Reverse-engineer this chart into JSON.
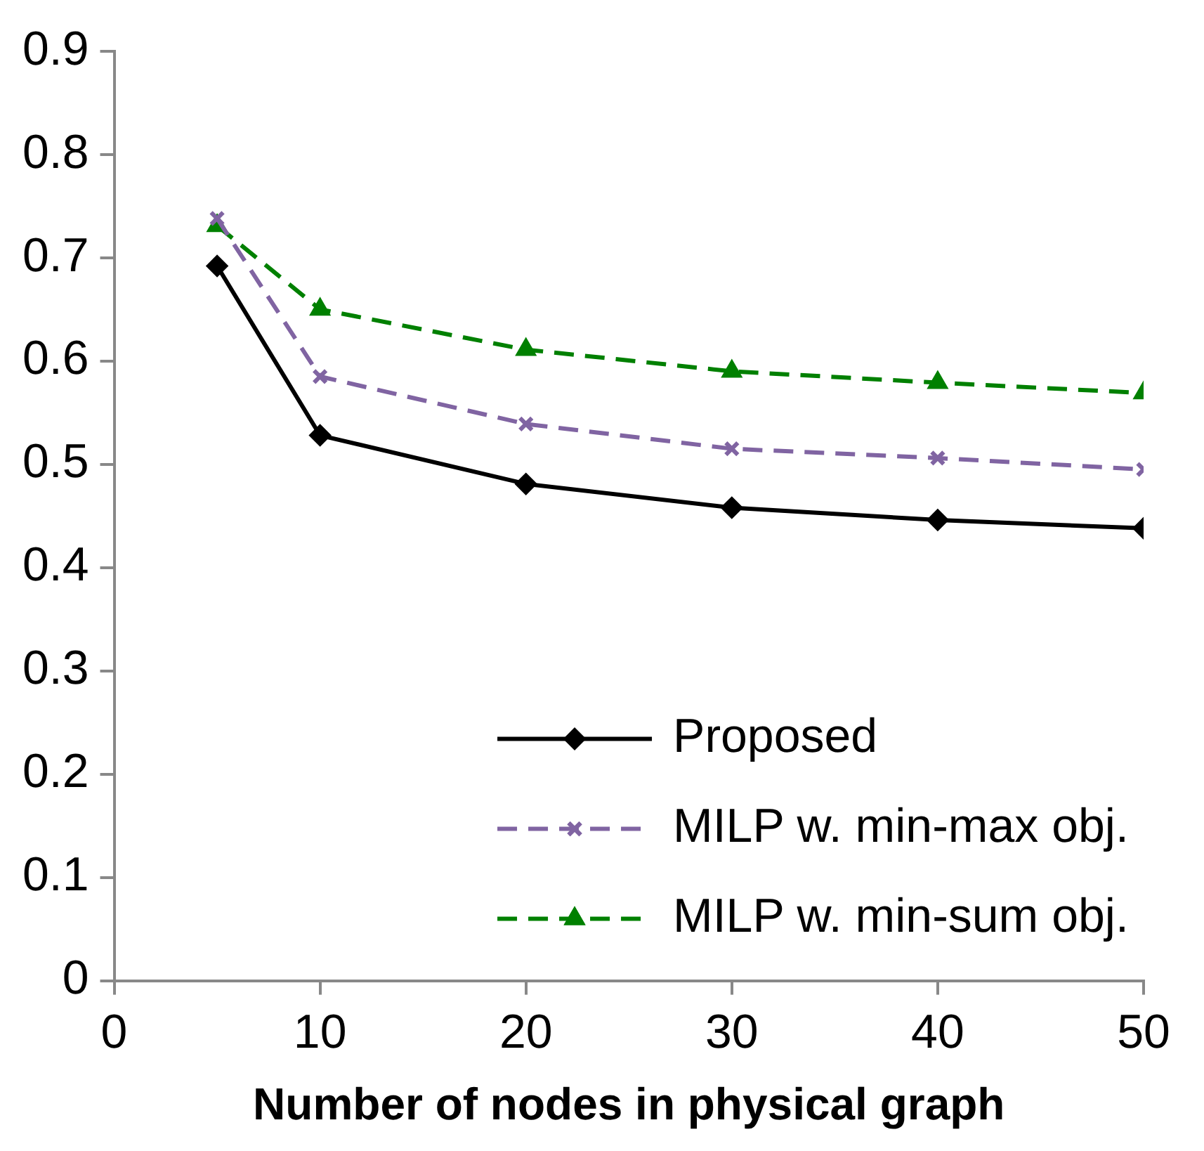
{
  "chart_data": {
    "type": "line",
    "xlabel": "Number of nodes in physical graph",
    "xlim": [
      0,
      50
    ],
    "xticks": [
      0,
      10,
      20,
      30,
      40,
      50
    ],
    "ylim": [
      0,
      0.9
    ],
    "yticks": [
      0,
      0.1,
      0.2,
      0.3,
      0.4,
      0.5,
      0.6,
      0.7,
      0.8,
      0.9
    ],
    "x": [
      5,
      10,
      20,
      30,
      40,
      50
    ],
    "grid": false,
    "legend": "bottom right",
    "series": [
      {
        "name": "Proposed",
        "color": "#000000",
        "marker": "diamond",
        "line_style": "solid",
        "values": [
          0.692,
          0.528,
          0.481,
          0.458,
          0.446,
          0.438
        ]
      },
      {
        "name": "MILP w. min-max obj.",
        "color": "#8064a2",
        "marker": "cross",
        "line_style": "dashed",
        "values": [
          0.738,
          0.585,
          0.539,
          0.515,
          0.506,
          0.495
        ]
      },
      {
        "name": "MILP w. min-sum obj.",
        "color": "#008000",
        "marker": "triangle",
        "line_style": "dashed",
        "values": [
          0.731,
          0.65,
          0.611,
          0.59,
          0.579,
          0.569
        ]
      }
    ]
  }
}
